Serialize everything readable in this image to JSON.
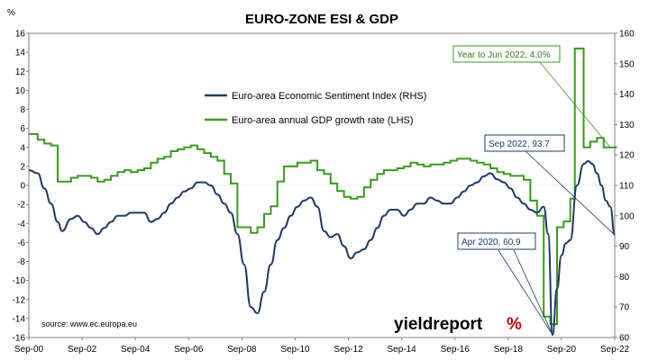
{
  "chart_data": {
    "type": "line",
    "title": "EURO-ZONE ESI & GDP",
    "left_axis_unit": "%",
    "x_tick_labels": [
      "Sep-00",
      "Sep-02",
      "Sep-04",
      "Sep-06",
      "Sep-08",
      "Sep-10",
      "Sep-12",
      "Sep-14",
      "Sep-16",
      "Sep-18",
      "Sep-20",
      "Sep-22"
    ],
    "x_range": [
      2000.667,
      2022.667
    ],
    "y_left": {
      "range": [
        -16,
        16
      ],
      "ticks": [
        16,
        14,
        12,
        10,
        8,
        6,
        4,
        2,
        0,
        -2,
        -4,
        -6,
        -8,
        -10,
        -12,
        -14,
        -16
      ]
    },
    "y_right": {
      "range": [
        60,
        160
      ],
      "ticks": [
        160,
        150,
        140,
        130,
        120,
        110,
        100,
        90,
        80,
        70,
        60
      ]
    },
    "legend": {
      "placement": "center-top"
    },
    "series": [
      {
        "name": "Euro-area Economic Sentiment Index (RHS)",
        "axis": "right",
        "color": "#1f3864",
        "points": [
          [
            2000.667,
            115
          ],
          [
            2001.0,
            114
          ],
          [
            2001.25,
            109
          ],
          [
            2001.5,
            104
          ],
          [
            2001.75,
            98
          ],
          [
            2001.917,
            95
          ],
          [
            2002.25,
            99
          ],
          [
            2002.5,
            100
          ],
          [
            2002.75,
            98
          ],
          [
            2003.0,
            96
          ],
          [
            2003.25,
            94
          ],
          [
            2003.5,
            96
          ],
          [
            2003.75,
            98
          ],
          [
            2004.0,
            100
          ],
          [
            2004.25,
            100
          ],
          [
            2004.5,
            101
          ],
          [
            2004.75,
            101
          ],
          [
            2005.0,
            101
          ],
          [
            2005.25,
            98
          ],
          [
            2005.5,
            99
          ],
          [
            2005.75,
            101
          ],
          [
            2006.0,
            104
          ],
          [
            2006.25,
            106
          ],
          [
            2006.5,
            108
          ],
          [
            2006.75,
            109
          ],
          [
            2007.0,
            111
          ],
          [
            2007.25,
            111
          ],
          [
            2007.5,
            110
          ],
          [
            2007.75,
            107
          ],
          [
            2008.0,
            104
          ],
          [
            2008.25,
            101
          ],
          [
            2008.5,
            94
          ],
          [
            2008.75,
            84
          ],
          [
            2009.0,
            70
          ],
          [
            2009.25,
            68
          ],
          [
            2009.5,
            75
          ],
          [
            2009.75,
            84
          ],
          [
            2010.0,
            92
          ],
          [
            2010.25,
            96
          ],
          [
            2010.5,
            100
          ],
          [
            2010.75,
            103
          ],
          [
            2011.0,
            105
          ],
          [
            2011.25,
            106
          ],
          [
            2011.5,
            103
          ],
          [
            2011.75,
            95
          ],
          [
            2012.0,
            93
          ],
          [
            2012.25,
            94
          ],
          [
            2012.5,
            90
          ],
          [
            2012.75,
            86
          ],
          [
            2013.0,
            88
          ],
          [
            2013.25,
            89
          ],
          [
            2013.5,
            92
          ],
          [
            2013.75,
            96
          ],
          [
            2014.0,
            100
          ],
          [
            2014.25,
            102
          ],
          [
            2014.5,
            102
          ],
          [
            2014.75,
            100
          ],
          [
            2015.0,
            102
          ],
          [
            2015.25,
            104
          ],
          [
            2015.5,
            104
          ],
          [
            2015.75,
            106
          ],
          [
            2016.0,
            105
          ],
          [
            2016.25,
            104
          ],
          [
            2016.5,
            104
          ],
          [
            2016.75,
            106
          ],
          [
            2017.0,
            108
          ],
          [
            2017.25,
            110
          ],
          [
            2017.5,
            111
          ],
          [
            2017.75,
            113
          ],
          [
            2018.0,
            114
          ],
          [
            2018.25,
            112
          ],
          [
            2018.5,
            111
          ],
          [
            2018.75,
            109
          ],
          [
            2019.0,
            106
          ],
          [
            2019.25,
            104
          ],
          [
            2019.5,
            102
          ],
          [
            2019.75,
            101
          ],
          [
            2020.0,
            103
          ],
          [
            2020.167,
            94
          ],
          [
            2020.333,
            60.9
          ],
          [
            2020.5,
            76
          ],
          [
            2020.667,
            87
          ],
          [
            2020.833,
            91
          ],
          [
            2021.0,
            92
          ],
          [
            2021.25,
            110
          ],
          [
            2021.5,
            117
          ],
          [
            2021.667,
            118
          ],
          [
            2021.833,
            117
          ],
          [
            2022.0,
            114
          ],
          [
            2022.167,
            110
          ],
          [
            2022.333,
            105
          ],
          [
            2022.5,
            103
          ],
          [
            2022.667,
            93.7
          ]
        ]
      },
      {
        "name": "Euro-area annual GDP growth rate (LHS)",
        "axis": "left",
        "color": "#3a9a1e",
        "step": true,
        "points": [
          [
            2000.667,
            5.4
          ],
          [
            2001.0,
            4.8
          ],
          [
            2001.25,
            4.4
          ],
          [
            2001.5,
            4.2
          ],
          [
            2001.75,
            0.4
          ],
          [
            2002.25,
            0.8
          ],
          [
            2002.5,
            1.0
          ],
          [
            2002.75,
            1.0
          ],
          [
            2003.0,
            0.8
          ],
          [
            2003.25,
            0.4
          ],
          [
            2003.5,
            0.6
          ],
          [
            2003.75,
            1.0
          ],
          [
            2004.0,
            1.4
          ],
          [
            2004.25,
            1.6
          ],
          [
            2004.5,
            1.4
          ],
          [
            2004.75,
            1.6
          ],
          [
            2005.0,
            1.8
          ],
          [
            2005.25,
            2.4
          ],
          [
            2005.5,
            2.8
          ],
          [
            2005.75,
            3.0
          ],
          [
            2006.0,
            3.6
          ],
          [
            2006.25,
            3.8
          ],
          [
            2006.5,
            4.0
          ],
          [
            2006.75,
            4.2
          ],
          [
            2007.0,
            3.8
          ],
          [
            2007.25,
            3.4
          ],
          [
            2007.5,
            3.0
          ],
          [
            2007.75,
            2.6
          ],
          [
            2008.0,
            1.2
          ],
          [
            2008.25,
            0.2
          ],
          [
            2008.5,
            -4.4
          ],
          [
            2009.0,
            -5.0
          ],
          [
            2009.25,
            -4.4
          ],
          [
            2009.5,
            -3.0
          ],
          [
            2009.75,
            -2.2
          ],
          [
            2010.0,
            0.4
          ],
          [
            2010.25,
            2.0
          ],
          [
            2010.5,
            2.0
          ],
          [
            2010.75,
            2.4
          ],
          [
            2011.0,
            2.4
          ],
          [
            2011.25,
            2.6
          ],
          [
            2011.5,
            1.6
          ],
          [
            2011.75,
            1.2
          ],
          [
            2012.0,
            0.2
          ],
          [
            2012.25,
            -0.6
          ],
          [
            2012.5,
            -1.2
          ],
          [
            2012.75,
            -1.4
          ],
          [
            2013.0,
            -1.2
          ],
          [
            2013.25,
            -0.2
          ],
          [
            2013.5,
            0.6
          ],
          [
            2013.75,
            1.2
          ],
          [
            2014.0,
            1.6
          ],
          [
            2014.25,
            1.6
          ],
          [
            2014.5,
            1.8
          ],
          [
            2014.75,
            2.0
          ],
          [
            2015.0,
            2.4
          ],
          [
            2015.25,
            2.2
          ],
          [
            2015.5,
            2.0
          ],
          [
            2015.75,
            2.2
          ],
          [
            2016.0,
            2.2
          ],
          [
            2016.25,
            2.4
          ],
          [
            2016.5,
            2.6
          ],
          [
            2016.75,
            2.8
          ],
          [
            2017.0,
            2.8
          ],
          [
            2017.25,
            2.6
          ],
          [
            2017.5,
            2.4
          ],
          [
            2017.75,
            2.2
          ],
          [
            2018.0,
            1.8
          ],
          [
            2018.25,
            1.4
          ],
          [
            2018.5,
            1.2
          ],
          [
            2018.75,
            1.0
          ],
          [
            2019.0,
            1.0
          ],
          [
            2019.25,
            0.6
          ],
          [
            2019.5,
            -1.6
          ],
          [
            2019.75,
            -3.2
          ],
          [
            2020.0,
            -13.8
          ],
          [
            2020.25,
            -14.6
          ],
          [
            2020.5,
            -4.4
          ],
          [
            2020.75,
            -3.8
          ],
          [
            2021.0,
            -1.4
          ],
          [
            2021.167,
            14.4
          ],
          [
            2021.5,
            4.0
          ],
          [
            2021.75,
            4.6
          ],
          [
            2022.0,
            5.0
          ],
          [
            2022.25,
            4.0
          ],
          [
            2022.5,
            4.0
          ]
        ]
      }
    ],
    "annotations": [
      {
        "text": "Year to Jun 2022, 4.0%",
        "series": 1,
        "x": 2022.5,
        "y": 4.0
      },
      {
        "text": "Sep 2022, 93.7",
        "series": 0,
        "x": 2022.667,
        "y": 93.7
      },
      {
        "text": "Apr 2020, 60.9",
        "series": 0,
        "x": 2020.333,
        "y": 60.9
      }
    ],
    "source": "source: www.ec.europa.eu"
  },
  "branding": {
    "logo_word": "yieldreport",
    "logo_mark": "%"
  }
}
